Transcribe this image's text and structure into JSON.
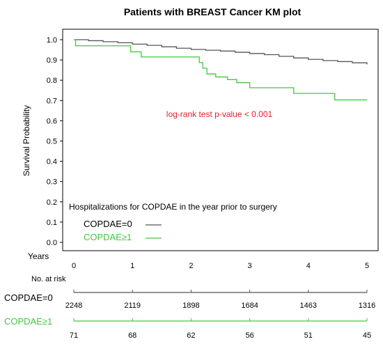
{
  "chart_data": {
    "type": "line",
    "subtype": "kaplan-meier",
    "title": "Patients with BREAST Cancer KM plot",
    "ylabel": "Survival Probability",
    "x_axis_label": "Years",
    "xlim": [
      0,
      5
    ],
    "ylim": [
      0,
      1
    ],
    "x_ticks": [
      0,
      1,
      2,
      3,
      4,
      5
    ],
    "y_ticks": [
      "0.0",
      "0.1",
      "0.2",
      "0.3",
      "0.4",
      "0.5",
      "0.6",
      "0.7",
      "0.8",
      "0.9",
      "1.0"
    ],
    "annotation": "log-rank test p-value < 0.001",
    "annotation_color": "#e8202a",
    "legend": {
      "title": "Hospitalizations for COPDAE in the year prior to surgery",
      "placement": "bottom-left"
    },
    "series": [
      {
        "name": "COPDAE=0",
        "color": "#555555",
        "x": [
          0,
          0.25,
          0.5,
          0.75,
          1,
          1.25,
          1.5,
          1.75,
          2,
          2.25,
          2.5,
          2.75,
          3,
          3.25,
          3.5,
          3.75,
          4,
          4.25,
          4.5,
          4.75,
          5
        ],
        "y": [
          1.0,
          0.995,
          0.99,
          0.985,
          0.978,
          0.972,
          0.965,
          0.958,
          0.952,
          0.948,
          0.944,
          0.938,
          0.932,
          0.926,
          0.918,
          0.91,
          0.903,
          0.897,
          0.892,
          0.886,
          0.878
        ]
      },
      {
        "name": "COPDAE≥1",
        "color": "#3ec93e",
        "x": [
          0,
          0.03,
          0.9,
          0.97,
          1.15,
          2.08,
          2.14,
          2.2,
          2.27,
          2.42,
          2.62,
          2.78,
          3.0,
          3.58,
          3.75,
          4.45,
          5.0
        ],
        "y": [
          1.0,
          0.97,
          0.97,
          0.94,
          0.915,
          0.915,
          0.887,
          0.859,
          0.831,
          0.816,
          0.803,
          0.788,
          0.763,
          0.763,
          0.735,
          0.703,
          0.703
        ]
      }
    ],
    "risk_table": {
      "title": "No. at risk",
      "rows": [
        {
          "name": "COPDAE=0",
          "color": "#555555",
          "values": [
            2248,
            2119,
            1898,
            1684,
            1463,
            1316
          ]
        },
        {
          "name": "COPDAE≥1",
          "color": "#3ec93e",
          "values": [
            71,
            68,
            62,
            56,
            51,
            45
          ]
        }
      ]
    }
  }
}
